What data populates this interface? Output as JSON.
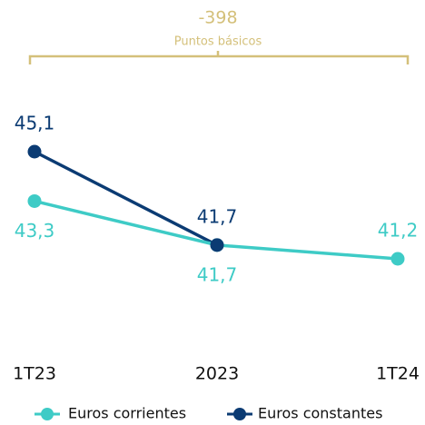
{
  "chart_data": {
    "type": "line",
    "annotation": {
      "value": "-398",
      "label": "Puntos básicos"
    },
    "categories": [
      "1T23",
      "2023",
      "1T24"
    ],
    "series": [
      {
        "name": "Euros corrientes",
        "color": "#3ecbc6",
        "values": [
          43.3,
          41.7,
          41.2
        ],
        "value_labels": [
          "43,3",
          "41,7",
          "41,2"
        ]
      },
      {
        "name": "Euros constantes",
        "color": "#0b3b73",
        "values": [
          45.1,
          41.7,
          null
        ],
        "value_labels": [
          "45,1",
          "41,7",
          null
        ]
      }
    ],
    "legend": "bottom"
  }
}
